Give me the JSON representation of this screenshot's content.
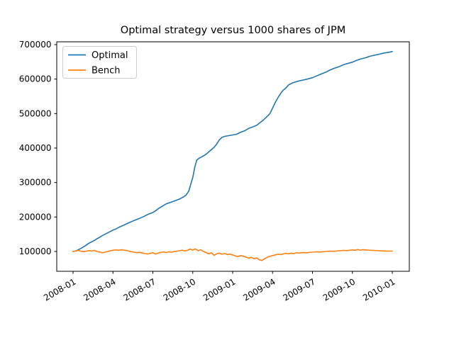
{
  "window": {
    "title": "Optimal strategy versus 1000 shares of JPM"
  },
  "colors": {
    "optimal_line": "#1f77b4",
    "bench_line": "#ff7f0e",
    "axes_edge": "#000000",
    "legend_border": "#cccccc",
    "background": "#ffffff"
  },
  "legend": {
    "entries": [
      "Optimal",
      "Bench"
    ],
    "position": "upper left"
  },
  "chart_data": {
    "type": "line",
    "title": "Optimal strategy versus 1000 shares of JPM",
    "xlabel": "",
    "ylabel": "",
    "grid": false,
    "legend_position": "upper left",
    "x_unit": "months since 2008-01",
    "x_tick_positions": [
      0,
      3,
      6,
      9,
      12,
      15,
      18,
      21,
      24
    ],
    "x_tick_labels": [
      "2008-01",
      "2008-04",
      "2008-07",
      "2008-10",
      "2009-01",
      "2009-04",
      "2009-07",
      "2009-10",
      "2010-01"
    ],
    "x_tick_rotation_deg": 30,
    "y_ticks": [
      100000,
      200000,
      300000,
      400000,
      500000,
      600000,
      700000
    ],
    "y_tick_labels": [
      "100000",
      "200000",
      "300000",
      "400000",
      "500000",
      "600000",
      "700000"
    ],
    "xlim": [
      -1.23,
      25.28
    ],
    "ylim": [
      42500,
      708000
    ],
    "series": [
      {
        "name": "Optimal",
        "color": "#1f77b4",
        "points": [
          [
            0,
            100000
          ],
          [
            0.15,
            101000
          ],
          [
            0.3,
            103000
          ],
          [
            0.5,
            107000
          ],
          [
            0.7,
            111000
          ],
          [
            0.9,
            116000
          ],
          [
            1,
            119000
          ],
          [
            1.2,
            124000
          ],
          [
            1.4,
            128000
          ],
          [
            1.6,
            132000
          ],
          [
            1.8,
            137000
          ],
          [
            2,
            141000
          ],
          [
            2.2,
            146000
          ],
          [
            2.4,
            150000
          ],
          [
            2.6,
            154000
          ],
          [
            2.8,
            158000
          ],
          [
            3,
            162000
          ],
          [
            3.2,
            165000
          ],
          [
            3.5,
            171000
          ],
          [
            3.8,
            176000
          ],
          [
            4,
            180000
          ],
          [
            4.3,
            185000
          ],
          [
            4.6,
            190000
          ],
          [
            5,
            196000
          ],
          [
            5.3,
            201000
          ],
          [
            5.6,
            207000
          ],
          [
            6,
            213000
          ],
          [
            6.2,
            218000
          ],
          [
            6.4,
            224000
          ],
          [
            6.7,
            231000
          ],
          [
            7,
            238000
          ],
          [
            7.3,
            242000
          ],
          [
            7.6,
            246000
          ],
          [
            8,
            252000
          ],
          [
            8.3,
            258000
          ],
          [
            8.5,
            264000
          ],
          [
            8.7,
            275000
          ],
          [
            8.85,
            295000
          ],
          [
            9,
            315000
          ],
          [
            9.15,
            345000
          ],
          [
            9.3,
            365000
          ],
          [
            9.5,
            371000
          ],
          [
            9.7,
            375000
          ],
          [
            10,
            382000
          ],
          [
            10.3,
            392000
          ],
          [
            10.6,
            402000
          ],
          [
            10.8,
            412000
          ],
          [
            11,
            424000
          ],
          [
            11.2,
            431000
          ],
          [
            11.4,
            434000
          ],
          [
            11.7,
            436000
          ],
          [
            12,
            438000
          ],
          [
            12.3,
            440000
          ],
          [
            12.6,
            446000
          ],
          [
            12.9,
            450000
          ],
          [
            13.2,
            457000
          ],
          [
            13.5,
            461000
          ],
          [
            13.8,
            466000
          ],
          [
            14,
            472000
          ],
          [
            14.3,
            481000
          ],
          [
            14.6,
            492000
          ],
          [
            14.8,
            500000
          ],
          [
            15,
            516000
          ],
          [
            15.2,
            532000
          ],
          [
            15.4,
            546000
          ],
          [
            15.6,
            558000
          ],
          [
            15.8,
            568000
          ],
          [
            16,
            574000
          ],
          [
            16.2,
            583000
          ],
          [
            16.5,
            589000
          ],
          [
            17,
            595000
          ],
          [
            17.5,
            599000
          ],
          [
            18,
            604000
          ],
          [
            18.3,
            609000
          ],
          [
            18.6,
            614000
          ],
          [
            19,
            620000
          ],
          [
            19.3,
            626000
          ],
          [
            19.6,
            631000
          ],
          [
            20,
            636000
          ],
          [
            20.3,
            641000
          ],
          [
            20.6,
            645000
          ],
          [
            21,
            649000
          ],
          [
            21.3,
            654000
          ],
          [
            21.6,
            658000
          ],
          [
            22,
            662000
          ],
          [
            22.3,
            666000
          ],
          [
            22.6,
            669000
          ],
          [
            23,
            672000
          ],
          [
            23.3,
            675000
          ],
          [
            23.6,
            677000
          ],
          [
            23.9,
            679000
          ],
          [
            24,
            680000
          ]
        ]
      },
      {
        "name": "Bench",
        "color": "#ff7f0e",
        "points": [
          [
            0,
            100000
          ],
          [
            0.2,
            101500
          ],
          [
            0.4,
            103000
          ],
          [
            0.6,
            100500
          ],
          [
            0.8,
            99500
          ],
          [
            1,
            101000
          ],
          [
            1.2,
            102500
          ],
          [
            1.4,
            101000
          ],
          [
            1.6,
            103000
          ],
          [
            1.8,
            100000
          ],
          [
            2,
            98500
          ],
          [
            2.2,
            96000
          ],
          [
            2.4,
            98000
          ],
          [
            2.6,
            100000
          ],
          [
            2.8,
            102000
          ],
          [
            3,
            103500
          ],
          [
            3.2,
            104500
          ],
          [
            3.4,
            103500
          ],
          [
            3.6,
            105000
          ],
          [
            3.8,
            104000
          ],
          [
            4,
            103000
          ],
          [
            4.2,
            101000
          ],
          [
            4.4,
            99000
          ],
          [
            4.6,
            98000
          ],
          [
            4.8,
            96500
          ],
          [
            5,
            97500
          ],
          [
            5.2,
            95500
          ],
          [
            5.4,
            94000
          ],
          [
            5.6,
            92500
          ],
          [
            5.8,
            94500
          ],
          [
            6,
            96000
          ],
          [
            6.2,
            92500
          ],
          [
            6.4,
            95000
          ],
          [
            6.6,
            97000
          ],
          [
            6.8,
            98500
          ],
          [
            7,
            97000
          ],
          [
            7.2,
            99000
          ],
          [
            7.4,
            98000
          ],
          [
            7.6,
            99500
          ],
          [
            7.8,
            101000
          ],
          [
            8,
            102000
          ],
          [
            8.2,
            104000
          ],
          [
            8.4,
            101500
          ],
          [
            8.6,
            103000
          ],
          [
            8.8,
            107000
          ],
          [
            9,
            104000
          ],
          [
            9.2,
            107500
          ],
          [
            9.4,
            102000
          ],
          [
            9.6,
            105000
          ],
          [
            9.8,
            100000
          ],
          [
            10,
            97000
          ],
          [
            10.2,
            93000
          ],
          [
            10.4,
            96000
          ],
          [
            10.6,
            89000
          ],
          [
            10.8,
            93000
          ],
          [
            11,
            95000
          ],
          [
            11.2,
            92000
          ],
          [
            11.4,
            94000
          ],
          [
            11.6,
            91000
          ],
          [
            11.8,
            92500
          ],
          [
            12,
            90000
          ],
          [
            12.2,
            87000
          ],
          [
            12.4,
            85000
          ],
          [
            12.6,
            88000
          ],
          [
            12.8,
            86000
          ],
          [
            13,
            84000
          ],
          [
            13.2,
            80500
          ],
          [
            13.4,
            83000
          ],
          [
            13.6,
            79000
          ],
          [
            13.8,
            81000
          ],
          [
            14,
            76000
          ],
          [
            14.2,
            74000
          ],
          [
            14.4,
            79000
          ],
          [
            14.6,
            83000
          ],
          [
            14.8,
            86000
          ],
          [
            15,
            88000
          ],
          [
            15.2,
            90000
          ],
          [
            15.4,
            92000
          ],
          [
            15.6,
            91000
          ],
          [
            15.8,
            93000
          ],
          [
            16,
            94500
          ],
          [
            16.2,
            93000
          ],
          [
            16.4,
            95000
          ],
          [
            16.6,
            94000
          ],
          [
            16.8,
            96000
          ],
          [
            17,
            95500
          ],
          [
            17.2,
            96500
          ],
          [
            17.4,
            97000
          ],
          [
            17.6,
            96000
          ],
          [
            17.8,
            97500
          ],
          [
            18,
            98000
          ],
          [
            18.3,
            99000
          ],
          [
            18.6,
            98500
          ],
          [
            19,
            100000
          ],
          [
            19.3,
            101000
          ],
          [
            19.6,
            100500
          ],
          [
            20,
            102000
          ],
          [
            20.3,
            103000
          ],
          [
            20.6,
            102500
          ],
          [
            21,
            104500
          ],
          [
            21.2,
            103500
          ],
          [
            21.4,
            105500
          ],
          [
            21.6,
            104000
          ],
          [
            21.8,
            105000
          ],
          [
            22,
            104500
          ],
          [
            22.3,
            103500
          ],
          [
            22.6,
            103000
          ],
          [
            23,
            102000
          ],
          [
            23.3,
            101500
          ],
          [
            23.6,
            101000
          ],
          [
            24,
            101000
          ]
        ]
      }
    ]
  },
  "layout_note": "matplotlib-style figure, axes box with outward ticks, legend upper-left"
}
